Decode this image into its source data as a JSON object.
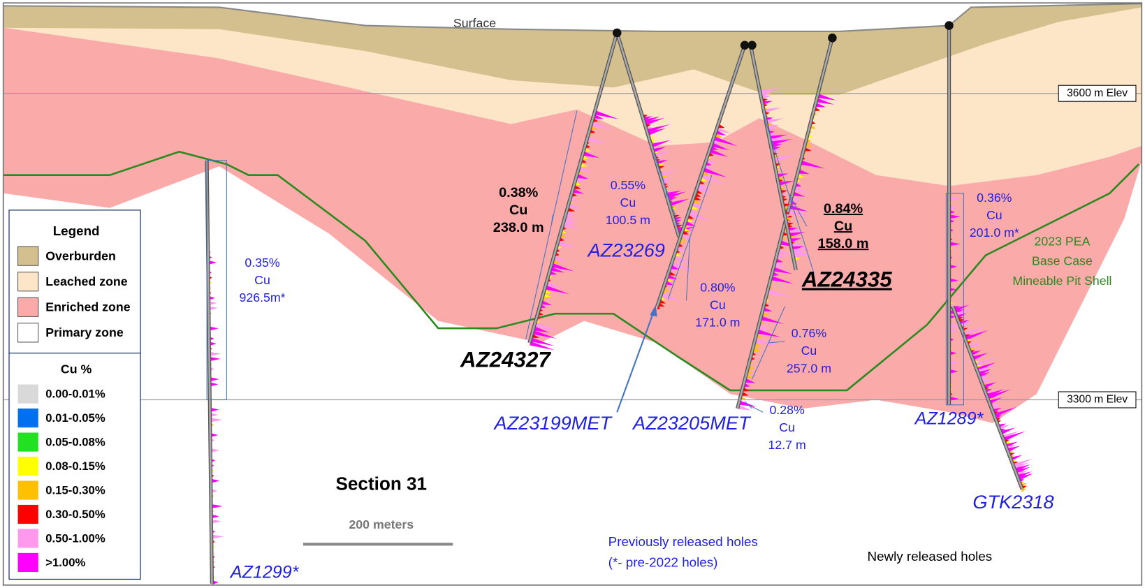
{
  "surface_label": "Surface",
  "elevations": [
    "3600 m Elev",
    "3300 m Elev"
  ],
  "legend": {
    "title": "Legend",
    "items": [
      {
        "label": "Overburden",
        "color": "#d4bf8e"
      },
      {
        "label": "Leached zone",
        "color": "#fde5c8"
      },
      {
        "label": "Enriched zone",
        "color": "#fbaaaa"
      },
      {
        "label": "Primary zone",
        "color": "#ffffff"
      }
    ]
  },
  "cu_legend": {
    "title": "Cu %",
    "items": [
      {
        "label": "0.00-0.01%",
        "color": "#d9d9d9"
      },
      {
        "label": "0.01-0.05%",
        "color": "#0070f0"
      },
      {
        "label": "0.05-0.08%",
        "color": "#22e022"
      },
      {
        "label": "0.08-0.15%",
        "color": "#ffff00"
      },
      {
        "label": "0.15-0.30%",
        "color": "#ffc000"
      },
      {
        "label": "0.30-0.50%",
        "color": "#ff0000"
      },
      {
        "label": "0.50-1.00%",
        "color": "#ff99ee"
      },
      {
        "label": ">1.00%",
        "color": "#ff00ff"
      }
    ]
  },
  "holes": [
    "AZ24327",
    "AZ23269",
    "AZ24335",
    "AZ23199MET",
    "AZ23205MET",
    "AZ1289*",
    "GTK2318",
    "AZ1299*"
  ],
  "intercepts": [
    {
      "lines": [
        "0.38%",
        "Cu",
        "238.0 m"
      ]
    },
    {
      "lines": [
        "0.55%",
        "Cu",
        "100.5 m"
      ]
    },
    {
      "lines": [
        "0.84%",
        "Cu",
        "158.0 m"
      ]
    },
    {
      "lines": [
        "0.80%",
        "Cu",
        "171.0 m"
      ]
    },
    {
      "lines": [
        "0.76%",
        "Cu",
        "257.0 m"
      ]
    },
    {
      "lines": [
        "0.28%",
        "Cu",
        "12.7 m"
      ]
    },
    {
      "lines": [
        "0.36%",
        "Cu",
        "201.0 m*"
      ]
    },
    {
      "lines": [
        "0.35%",
        "Cu",
        "926.5m*"
      ]
    }
  ],
  "pit_shell_label": [
    "2023 PEA",
    "Base Case",
    "Mineable Pit Shell"
  ],
  "section_title": "Section 31",
  "scale_label": "200 meters",
  "notes": [
    "Previously released holes",
    "(*- pre-2022 holes)",
    "Newly released holes"
  ]
}
